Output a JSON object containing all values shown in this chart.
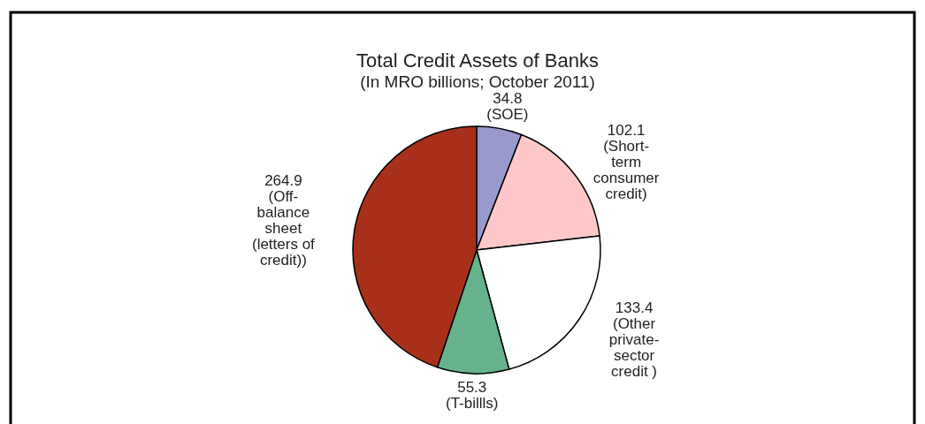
{
  "chart_data": {
    "type": "pie",
    "title": "Total Credit Assets of Banks",
    "subtitle": "(In MRO billions; October 2011)",
    "categories": [
      "(SOE)",
      "(Short-\nterm\nconsumer\ncredit)",
      "(Other\nprivate-\nsector\ncredit )",
      "(T-billls)",
      "(Off-\nbalance\nsheet\n(letters of\ncredit))"
    ],
    "values": [
      34.8,
      102.1,
      133.4,
      55.3,
      264.9
    ],
    "colors": [
      "#9999cc",
      "#ffc8c8",
      "#ffffff",
      "#66b28c",
      "#a8301a"
    ],
    "data_labels": true
  }
}
